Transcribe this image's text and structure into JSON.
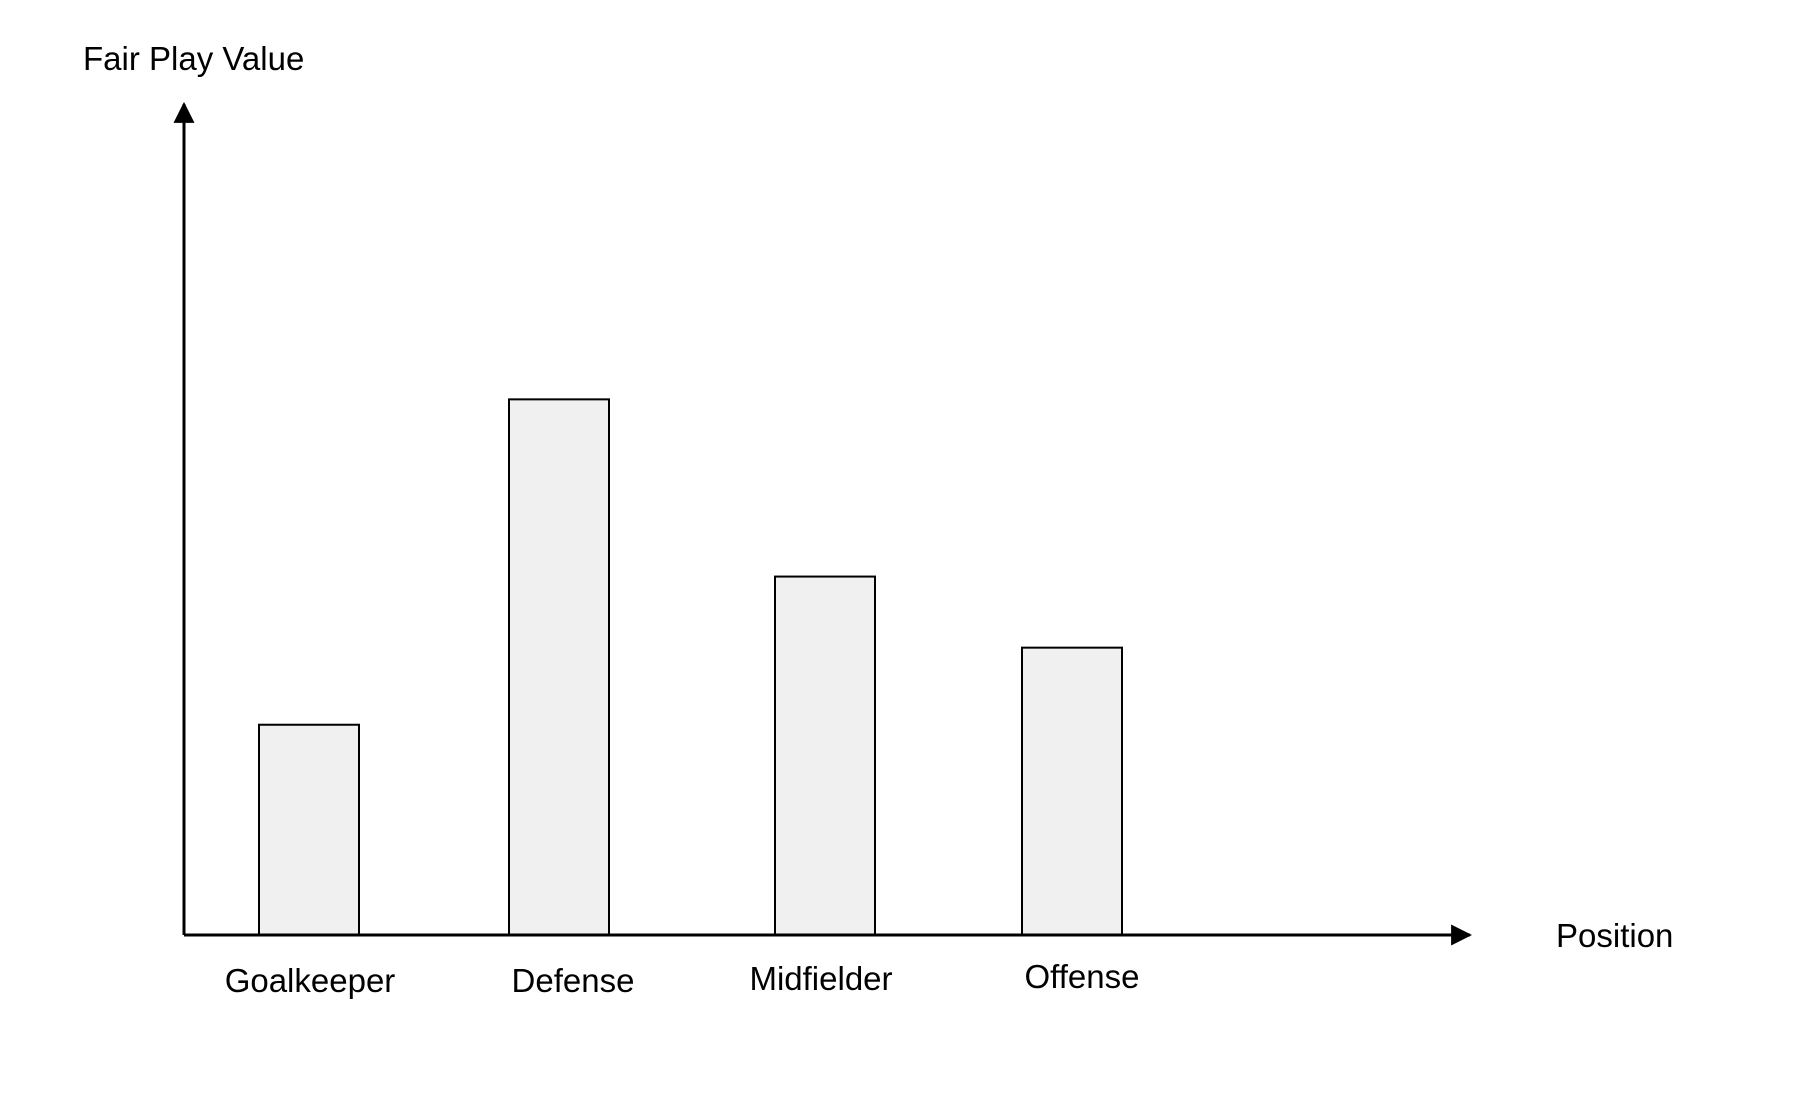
{
  "chart_data": {
    "type": "bar",
    "title": "",
    "xlabel": "Position",
    "ylabel": "Fair Play Value",
    "categories": [
      "Goalkeeper",
      "Defense",
      "Midfielder",
      "Offense"
    ],
    "values": [
      21,
      53.5,
      35.8,
      28.7
    ],
    "ylim": [
      0,
      83
    ],
    "grid": false,
    "legend": "none",
    "colors": {
      "bar_fill": "#f0f0f0",
      "bar_stroke": "#000000",
      "axis": "#000000"
    }
  }
}
